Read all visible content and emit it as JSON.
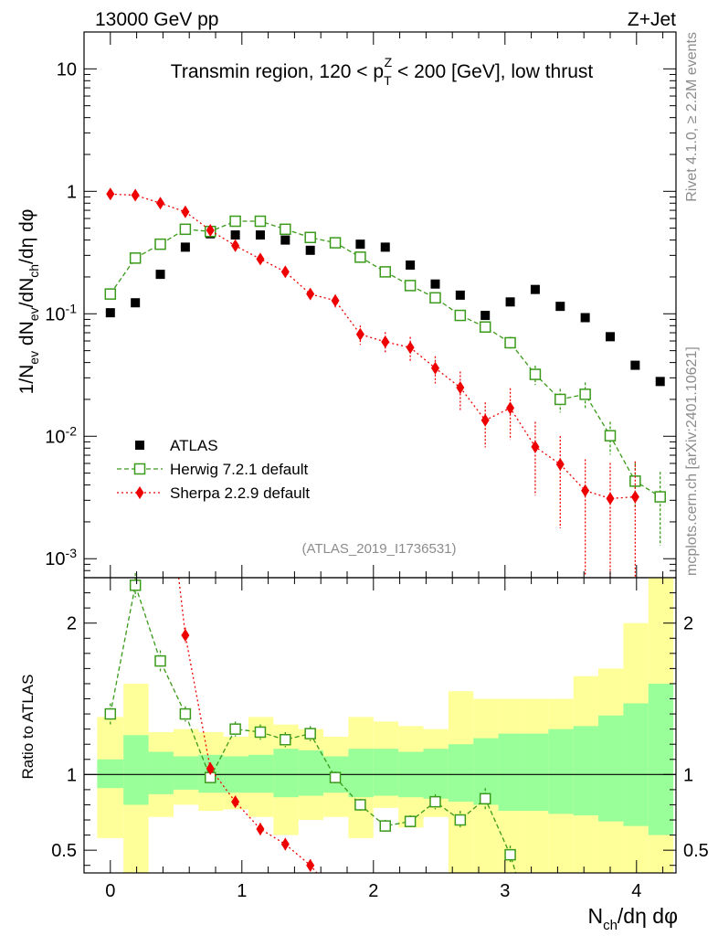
{
  "header": {
    "left": "13000 GeV pp",
    "right": "Z+Jet"
  },
  "side_labels": {
    "rivet": "Rivet 4.1.0, ≥ 2.2M events",
    "mcplots": "mcplots.cern.ch [arXiv:2401.10621]"
  },
  "chart_data": [
    {
      "type": "scatter",
      "panel": "main",
      "title": "Transmin region, 120 < p_T^Z < 200 [GeV], low thrust",
      "ylabel": "1/N_ev dN_ev/dN_ch/dη dφ",
      "yscale": "log",
      "ylim": [
        0.0007,
        20
      ],
      "xlim": [
        -0.2,
        4.3
      ],
      "y_ticks": [
        "10^-3",
        "10^-2",
        "10^-1",
        "1",
        "10"
      ],
      "analysis_label": "(ATLAS_2019_I1736531)",
      "legend": [
        "ATLAS",
        "Herwig 7.2.1 default",
        "Sherpa 2.2.9 default"
      ],
      "series": [
        {
          "name": "ATLAS",
          "color": "#000000",
          "marker": "filled-square",
          "x": [
            0.0,
            0.19,
            0.38,
            0.57,
            0.76,
            0.95,
            1.14,
            1.33,
            1.52,
            1.71,
            1.9,
            2.09,
            2.28,
            2.47,
            2.66,
            2.85,
            3.04,
            3.23,
            3.42,
            3.61,
            3.8,
            3.99,
            4.18
          ],
          "y": [
            0.102,
            0.123,
            0.21,
            0.35,
            0.45,
            0.44,
            0.44,
            0.4,
            0.33,
            0.38,
            0.37,
            0.35,
            0.25,
            0.175,
            0.142,
            0.097,
            0.125,
            0.158,
            0.115,
            0.093,
            0.065,
            0.038,
            0.028
          ]
        },
        {
          "name": "Herwig 7.2.1 default",
          "color": "#3a9a1a",
          "marker": "open-square",
          "line": "dashed",
          "x": [
            0.0,
            0.19,
            0.38,
            0.57,
            0.76,
            0.95,
            1.14,
            1.33,
            1.52,
            1.71,
            1.9,
            2.09,
            2.28,
            2.47,
            2.66,
            2.85,
            3.04,
            3.23,
            3.42,
            3.61,
            3.8,
            3.99,
            4.18
          ],
          "y": [
            0.145,
            0.285,
            0.37,
            0.49,
            0.47,
            0.57,
            0.57,
            0.49,
            0.42,
            0.38,
            0.29,
            0.22,
            0.17,
            0.135,
            0.097,
            0.078,
            0.058,
            0.032,
            0.02,
            0.022,
            0.0101,
            0.0043,
            0.0032
          ],
          "err_frac": [
            0.02,
            0.02,
            0.02,
            0.02,
            0.02,
            0.02,
            0.02,
            0.03,
            0.03,
            0.03,
            0.04,
            0.04,
            0.05,
            0.06,
            0.08,
            0.09,
            0.12,
            0.18,
            0.22,
            0.25,
            0.3,
            0.4,
            0.6
          ]
        },
        {
          "name": "Sherpa 2.2.9 default",
          "color": "#ee0000",
          "marker": "filled-diamond",
          "line": "dotted",
          "x": [
            0.0,
            0.19,
            0.38,
            0.57,
            0.76,
            0.95,
            1.14,
            1.33,
            1.52,
            1.71,
            1.9,
            2.09,
            2.28,
            2.47,
            2.66,
            2.85,
            3.04,
            3.23,
            3.42,
            3.61,
            3.8,
            3.99
          ],
          "y": [
            0.95,
            0.93,
            0.8,
            0.68,
            0.48,
            0.36,
            0.28,
            0.22,
            0.145,
            0.128,
            0.068,
            0.059,
            0.053,
            0.036,
            0.025,
            0.0135,
            0.017,
            0.0082,
            0.0059,
            0.0036,
            0.0031,
            0.0032
          ],
          "err_frac": [
            0.02,
            0.02,
            0.02,
            0.03,
            0.03,
            0.04,
            0.05,
            0.07,
            0.1,
            0.12,
            0.18,
            0.2,
            0.22,
            0.25,
            0.35,
            0.4,
            0.45,
            0.6,
            0.7,
            0.8,
            0.95,
            0.95
          ]
        }
      ]
    },
    {
      "type": "scatter",
      "panel": "ratio",
      "ylabel": "Ratio to ATLAS",
      "xlabel": "N_ch/dη dφ",
      "ylim": [
        0.35,
        2.3
      ],
      "xlim": [
        -0.2,
        4.3
      ],
      "x_ticks": [
        0,
        1,
        2,
        3,
        4
      ],
      "y_ticks": [
        0.5,
        1,
        2
      ],
      "bands": {
        "edges": [
          -0.1,
          0.1,
          0.29,
          0.48,
          0.67,
          0.86,
          1.05,
          1.24,
          1.43,
          1.62,
          1.81,
          2.0,
          2.19,
          2.38,
          2.57,
          2.76,
          2.95,
          3.14,
          3.33,
          3.52,
          3.71,
          3.9,
          4.09,
          4.28
        ],
        "green_low": [
          0.91,
          0.8,
          0.87,
          0.9,
          0.88,
          0.88,
          0.88,
          0.85,
          0.86,
          0.88,
          0.85,
          0.86,
          0.85,
          0.84,
          0.82,
          0.8,
          0.76,
          0.76,
          0.74,
          0.73,
          0.69,
          0.66,
          0.6
        ],
        "green_high": [
          1.1,
          1.26,
          1.15,
          1.12,
          1.13,
          1.12,
          1.13,
          1.17,
          1.16,
          1.12,
          1.17,
          1.17,
          1.15,
          1.17,
          1.2,
          1.24,
          1.27,
          1.27,
          1.3,
          1.32,
          1.39,
          1.47,
          1.6
        ],
        "yellow_low": [
          0.58,
          0.3,
          0.72,
          0.8,
          0.76,
          0.77,
          0.72,
          0.6,
          0.7,
          0.72,
          0.58,
          0.78,
          0.65,
          0.72,
          0.3,
          0.3,
          0.3,
          0.3,
          0.3,
          0.3,
          0.3,
          0.3,
          0.3
        ],
        "yellow_high": [
          1.38,
          1.6,
          1.28,
          1.3,
          1.28,
          1.25,
          1.38,
          1.33,
          1.3,
          1.25,
          1.38,
          1.35,
          1.32,
          1.3,
          1.55,
          1.5,
          1.5,
          1.5,
          1.5,
          1.65,
          1.7,
          2.0,
          2.4
        ]
      },
      "series": [
        {
          "name": "Herwig 7.2.1 default",
          "color": "#3a9a1a",
          "marker": "open-square",
          "line": "dashed",
          "x": [
            0.0,
            0.19,
            0.38,
            0.57,
            0.76,
            0.95,
            1.14,
            1.33,
            1.52,
            1.71,
            1.9,
            2.09,
            2.28,
            2.47,
            2.66,
            2.85,
            3.04
          ],
          "y": [
            1.4,
            2.25,
            1.75,
            1.4,
            0.98,
            1.3,
            1.28,
            1.23,
            1.27,
            0.98,
            0.8,
            0.66,
            0.69,
            0.82,
            0.7,
            0.84,
            0.47
          ],
          "err": [
            0.07,
            0.08,
            0.07,
            0.05,
            0.04,
            0.05,
            0.05,
            0.05,
            0.05,
            0.04,
            0.04,
            0.04,
            0.04,
            0.05,
            0.06,
            0.07,
            0.06
          ]
        },
        {
          "name": "Sherpa 2.2.9 default",
          "color": "#ee0000",
          "marker": "filled-diamond",
          "line": "dotted",
          "x": [
            0.57,
            0.76,
            0.95,
            1.14,
            1.33,
            1.52
          ],
          "y": [
            1.92,
            1.04,
            0.82,
            0.64,
            0.54,
            0.4
          ],
          "err": [
            0.05,
            0.04,
            0.03,
            0.04,
            0.04,
            0.04
          ]
        }
      ]
    }
  ]
}
